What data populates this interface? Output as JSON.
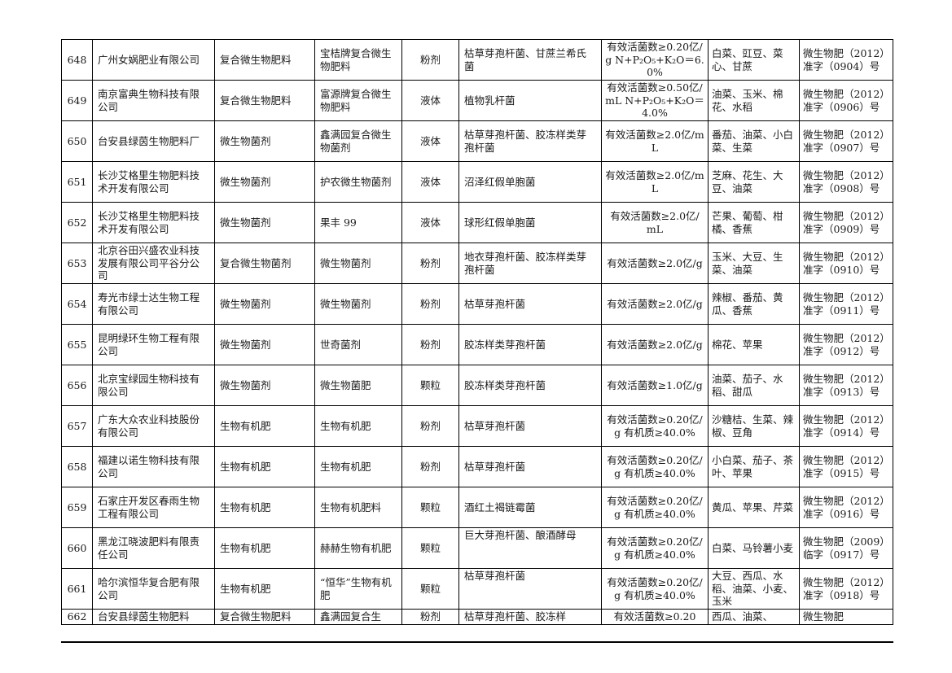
{
  "rows": [
    {
      "no": "648",
      "company": "广州女娲肥业有限公司",
      "type": "复合微生物肥料",
      "product": "宝桔牌复合微生物肥料",
      "form": "粉剂",
      "strain": "枯草芽孢杆菌、甘蔗兰希氏菌",
      "spec": "有效活菌数≥0.20亿/g N+P₂O₅+K₂O＝6.0%",
      "crops": "白菜、豇豆、菜心、甘蔗",
      "reg": "微生物肥（2012）准字（0904）号"
    },
    {
      "no": "649",
      "company": "南京富典生物科技有限公司",
      "type": "复合微生物肥料",
      "product": "富源牌复合微生物肥料",
      "form": "液体",
      "strain": "植物乳杆菌",
      "spec": "有效活菌数≥0.50亿/mL N+P₂O₅+K₂O＝4.0%",
      "crops": "油菜、玉米、棉花、水稻",
      "reg": "微生物肥（2012）准字（0906）号"
    },
    {
      "no": "650",
      "company": "台安县绿茵生物肥料厂",
      "type": "微生物菌剂",
      "product": "鑫满园复合微生物菌剂",
      "form": "液体",
      "strain": "枯草芽孢杆菌、胶冻样类芽孢杆菌",
      "spec": "有效活菌数≥2.0亿/mL",
      "crops": "番茄、油菜、小白菜、生菜",
      "reg": "微生物肥（2012）准字（0907）号"
    },
    {
      "no": "651",
      "company": "长沙艾格里生物肥料技术开发有限公司",
      "type": "微生物菌剂",
      "product": "护农微生物菌剂",
      "form": "液体",
      "strain": "沼泽红假单胞菌",
      "spec": "有效活菌数≥2.0亿/mL",
      "crops": "芝麻、花生、大豆、油菜",
      "reg": "微生物肥（2012）准字（0908）号"
    },
    {
      "no": "652",
      "company": "长沙艾格里生物肥料技术开发有限公司",
      "type": "微生物菌剂",
      "product": "果丰 99",
      "form": "液体",
      "strain": "球形红假单胞菌",
      "spec": "有效活菌数≥2.0亿/ mL",
      "crops": "芒果、葡萄、柑橘、香蕉",
      "reg": "微生物肥（2012）准字（0909）号"
    },
    {
      "no": "653",
      "company": "北京谷田兴盛农业科技发展有限公司平谷分公司",
      "type": "复合微生物菌剂",
      "product": "微生物菌剂",
      "form": "粉剂",
      "strain": "地衣芽孢杆菌、胶冻样类芽孢杆菌",
      "spec": "有效活菌数≥2.0亿/g",
      "crops": "玉米、大豆、生菜、油菜",
      "reg": "微生物肥（2012）准字（0910）号"
    },
    {
      "no": "654",
      "company": "寿光市绿士达生物工程有限公司",
      "type": "微生物菌剂",
      "product": "微生物菌剂",
      "form": "粉剂",
      "strain": "枯草芽孢杆菌",
      "spec": "有效活菌数≥2.0亿/g",
      "crops": "辣椒、番茄、黄瓜、香蕉",
      "reg": "微生物肥（2012）准字（0911）号"
    },
    {
      "no": "655",
      "company": "昆明绿环生物工程有限公司",
      "type": "微生物菌剂",
      "product": "世奇菌剂",
      "form": "粉剂",
      "strain": "胶冻样类芽孢杆菌",
      "spec": "有效活菌数≥2.0亿/g",
      "crops": "棉花、苹果",
      "reg": "微生物肥（2012）准字（0912）号"
    },
    {
      "no": "656",
      "company": "北京宝绿园生物科技有限公司",
      "type": "微生物菌剂",
      "product": "微生物菌肥",
      "form": "颗粒",
      "strain": "胶冻样类芽孢杆菌",
      "spec": "有效活菌数≥1.0亿/g",
      "crops": "油菜、茄子、水稻、甜瓜",
      "reg": "微生物肥（2012）准字（0913）号"
    },
    {
      "no": "657",
      "company": "广东大众农业科技股份有限公司",
      "type": "生物有机肥",
      "product": "生物有机肥",
      "form": "粉剂",
      "strain": "枯草芽孢杆菌",
      "spec": "有效活菌数≥0.20亿/g 有机质≥40.0%",
      "crops": "沙糖桔、生菜、辣椒、豆角",
      "reg": "微生物肥（2012）准字（0914）号"
    },
    {
      "no": "658",
      "company": "福建以诺生物科技有限公司",
      "type": "生物有机肥",
      "product": "生物有机肥",
      "form": "粉剂",
      "strain": "枯草芽孢杆菌",
      "spec": "有效活菌数≥0.20亿/g 有机质≥40.0%",
      "crops": "小白菜、茄子、茶叶、苹果",
      "reg": "微生物肥（2012）准字（0915）号"
    },
    {
      "no": "659",
      "company": "石家庄开发区春雨生物工程有限公司",
      "type": "生物有机肥",
      "product": "生物有机肥料",
      "form": "颗粒",
      "strain": "酒红土褐链霉菌",
      "spec": "有效活菌数≥0.20亿/g 有机质≥40.0%",
      "crops": "黄瓜、苹果、芹菜",
      "reg": "微生物肥（2012）准字（0916）号"
    },
    {
      "no": "660",
      "company": "黑龙江晓波肥料有限责任公司",
      "type": "生物有机肥",
      "product": "赫赫生物有机肥",
      "form": "颗粒",
      "strain": "巨大芽孢杆菌、酿酒酵母",
      "spec": "有效活菌数≥0.20亿/g 有机质≥40.0%",
      "crops": "白菜、马铃薯小麦",
      "reg": "微生物肥（2009）临字（0917）号"
    },
    {
      "no": "661",
      "company": "哈尔滨恒华复合肥有限公司",
      "type": "生物有机肥",
      "product": "“恒华”生物有机肥",
      "form": "颗粒",
      "strain": "枯草芽孢杆菌",
      "spec": "有效活菌数≥0.20亿/g 有机质≥40.0%",
      "crops": "大豆、西瓜、水稻、油菜、小麦、玉米",
      "reg": "微生物肥（2012）准字（0918）号"
    },
    {
      "no": "662",
      "company": "台安县绿茵生物肥料",
      "type": "复合微生物肥料",
      "product": "鑫满园复合生",
      "form": "粉剂",
      "strain": "枯草芽孢杆菌、胶冻样",
      "spec": "有效活菌数≥0.20",
      "crops": "西瓜、油菜、",
      "reg": "微生物肥"
    }
  ]
}
